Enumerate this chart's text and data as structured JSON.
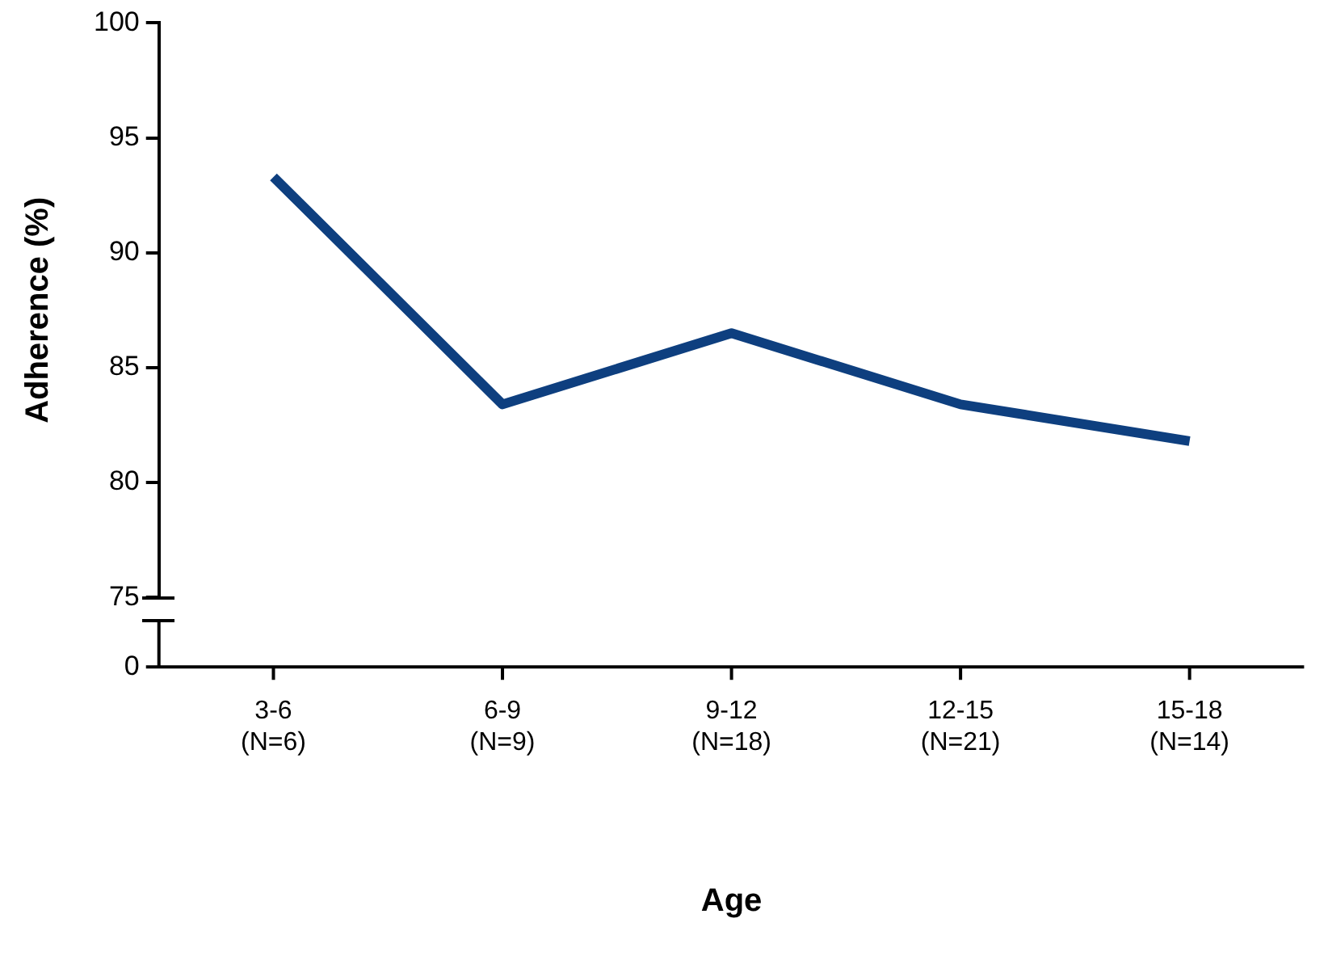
{
  "chart_data": {
    "type": "line",
    "xlabel": "Age",
    "ylabel": "Adherence (%)",
    "categories": [
      "3-6 (N=6)",
      "6-9 (N=9)",
      "9-12 (N=18)",
      "12-15 (N=21)",
      "15-18 (N=14)"
    ],
    "series": [
      {
        "color": "#0e3f7f",
        "values": [
          93.3,
          83.4,
          86.5,
          83.4,
          81.8
        ]
      }
    ],
    "ylim": [
      75,
      100
    ],
    "yticks": [
      75,
      80,
      85,
      90,
      95,
      100
    ],
    "annotations": [
      "0"
    ],
    "grid": false,
    "legend": false,
    "marker": "none",
    "line_style": "solid"
  }
}
